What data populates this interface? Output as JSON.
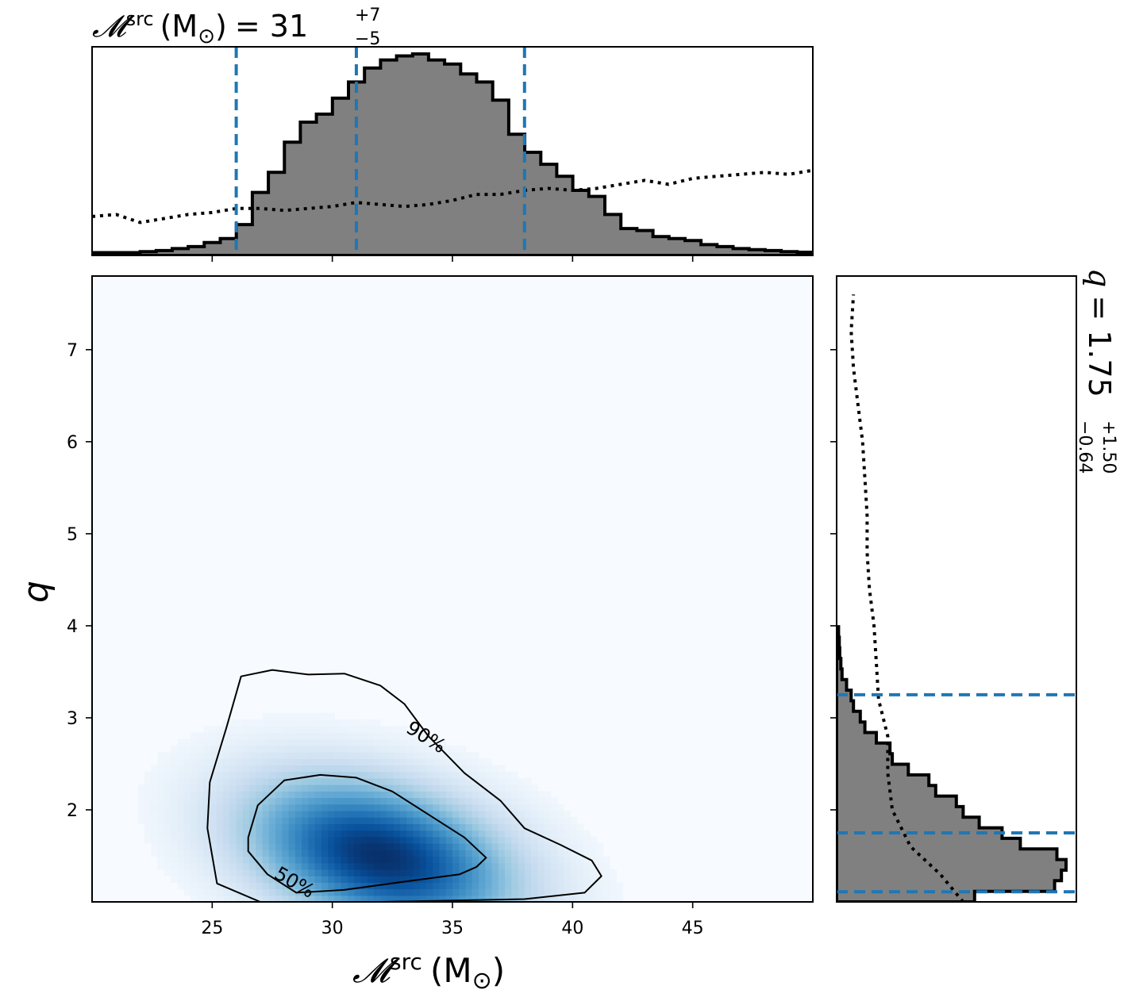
{
  "chart_data": {
    "type": "corner",
    "colors": {
      "hist_fill": "#808080",
      "hist_edge": "#000000",
      "interval_lines": "#1f77b4",
      "density_cmap": [
        "#f7fbff",
        "#deebf7",
        "#c6dbef",
        "#9ecae1",
        "#6baed6",
        "#4292c6",
        "#2171b5",
        "#08519c",
        "#08306b"
      ]
    },
    "titles": {
      "top_prefix": "",
      "top_symbol": "𝓜",
      "top_sup": "src",
      "top_units": "(M",
      "top_sun": "⊙",
      "top_close": ")",
      "top_value": "= 31",
      "top_plus": "+7",
      "top_minus": "−5",
      "right_symbol": "q",
      "right_value": "= 1.75",
      "right_plus": "+1.50",
      "right_minus": "−0.64"
    },
    "axes": {
      "xlabel_symbol": "𝓜",
      "xlabel_sup": "src",
      "xlabel_units": "(M",
      "xlabel_sun": "⊙",
      "xlabel_close": ")",
      "ylabel": "q",
      "xlim": [
        20,
        50
      ],
      "ylim": [
        1,
        7.8
      ],
      "xticks": [
        25,
        30,
        35,
        40,
        45
      ],
      "xtick_labels": [
        "25",
        "30",
        "35",
        "40",
        "45"
      ],
      "yticks": [
        2,
        3,
        4,
        5,
        6,
        7
      ],
      "ytick_labels": [
        "2",
        "3",
        "4",
        "5",
        "6",
        "7"
      ]
    },
    "mchirp_posterior": {
      "bin_edges_start": 20,
      "bin_width": 0.667,
      "counts": [
        0.01,
        0.01,
        0.01,
        0.015,
        0.02,
        0.03,
        0.04,
        0.06,
        0.08,
        0.15,
        0.31,
        0.41,
        0.56,
        0.66,
        0.7,
        0.78,
        0.86,
        0.93,
        0.97,
        0.99,
        1.0,
        0.97,
        0.95,
        0.9,
        0.86,
        0.77,
        0.6,
        0.51,
        0.45,
        0.39,
        0.32,
        0.29,
        0.2,
        0.13,
        0.12,
        0.09,
        0.08,
        0.07,
        0.05,
        0.04,
        0.03,
        0.025,
        0.02,
        0.015,
        0.012,
        0.01
      ]
    },
    "mchirp_prior_curve": {
      "x": [
        20,
        21,
        22,
        23,
        24,
        25,
        26,
        27,
        28,
        29,
        30,
        31,
        32,
        33,
        34,
        35,
        36,
        37,
        38,
        39,
        40,
        41,
        42,
        43,
        44,
        45,
        46,
        47,
        48,
        49,
        50
      ],
      "y": [
        0.19,
        0.2,
        0.16,
        0.18,
        0.2,
        0.21,
        0.23,
        0.23,
        0.22,
        0.23,
        0.24,
        0.26,
        0.25,
        0.24,
        0.25,
        0.27,
        0.3,
        0.3,
        0.32,
        0.33,
        0.32,
        0.33,
        0.35,
        0.37,
        0.35,
        0.38,
        0.39,
        0.4,
        0.41,
        0.4,
        0.42
      ]
    },
    "mchirp_intervals": [
      26,
      31,
      38
    ],
    "q_posterior": {
      "bin_edges_start": 1.0,
      "bin_width": 0.115,
      "counts": [
        0.6,
        0.95,
        0.98,
        1.0,
        0.96,
        0.8,
        0.72,
        0.62,
        0.55,
        0.52,
        0.43,
        0.4,
        0.31,
        0.24,
        0.23,
        0.17,
        0.12,
        0.1,
        0.07,
        0.06,
        0.04,
        0.02,
        0.015,
        0.01,
        0.008,
        0.005
      ]
    },
    "q_prior_curve": {
      "q": [
        1.0,
        1.3,
        1.6,
        2.0,
        2.4,
        2.8,
        3.2,
        3.6,
        4.0,
        4.4,
        4.8,
        5.2,
        5.6,
        6.0,
        6.4,
        6.8,
        7.2,
        7.6
      ],
      "w": [
        0.55,
        0.45,
        0.32,
        0.24,
        0.22,
        0.22,
        0.18,
        0.17,
        0.16,
        0.14,
        0.13,
        0.13,
        0.12,
        0.11,
        0.09,
        0.07,
        0.06,
        0.07
      ]
    },
    "q_intervals": [
      1.11,
      1.75,
      3.25
    ],
    "density": {
      "center": [
        32.0,
        1.5
      ],
      "sigma_mchirp": 3.6,
      "sigma_q": 0.55,
      "correlation": -0.35
    },
    "contours": [
      {
        "label": "50%",
        "points": [
          [
            26.5,
            1.7
          ],
          [
            26.9,
            2.05
          ],
          [
            28.0,
            2.32
          ],
          [
            29.5,
            2.38
          ],
          [
            31.0,
            2.35
          ],
          [
            32.5,
            2.2
          ],
          [
            34.0,
            1.95
          ],
          [
            35.5,
            1.7
          ],
          [
            36.4,
            1.48
          ],
          [
            36.0,
            1.38
          ],
          [
            35.3,
            1.3
          ],
          [
            33.0,
            1.22
          ],
          [
            30.5,
            1.13
          ],
          [
            28.5,
            1.1
          ],
          [
            27.3,
            1.3
          ],
          [
            26.5,
            1.55
          ],
          [
            26.5,
            1.7
          ]
        ]
      },
      {
        "label": "90%",
        "points": [
          [
            24.9,
            2.3
          ],
          [
            25.6,
            2.9
          ],
          [
            26.2,
            3.45
          ],
          [
            27.5,
            3.52
          ],
          [
            29.0,
            3.47
          ],
          [
            30.5,
            3.48
          ],
          [
            32.0,
            3.35
          ],
          [
            33.0,
            3.15
          ],
          [
            34.0,
            2.8
          ],
          [
            35.5,
            2.4
          ],
          [
            37.0,
            2.1
          ],
          [
            38.0,
            1.8
          ],
          [
            39.5,
            1.62
          ],
          [
            40.8,
            1.45
          ],
          [
            41.2,
            1.28
          ],
          [
            40.5,
            1.1
          ],
          [
            38.0,
            1.03
          ],
          [
            32.0,
            1.0
          ],
          [
            27.0,
            1.0
          ],
          [
            25.2,
            1.2
          ],
          [
            24.8,
            1.8
          ],
          [
            24.9,
            2.3
          ]
        ]
      }
    ]
  }
}
